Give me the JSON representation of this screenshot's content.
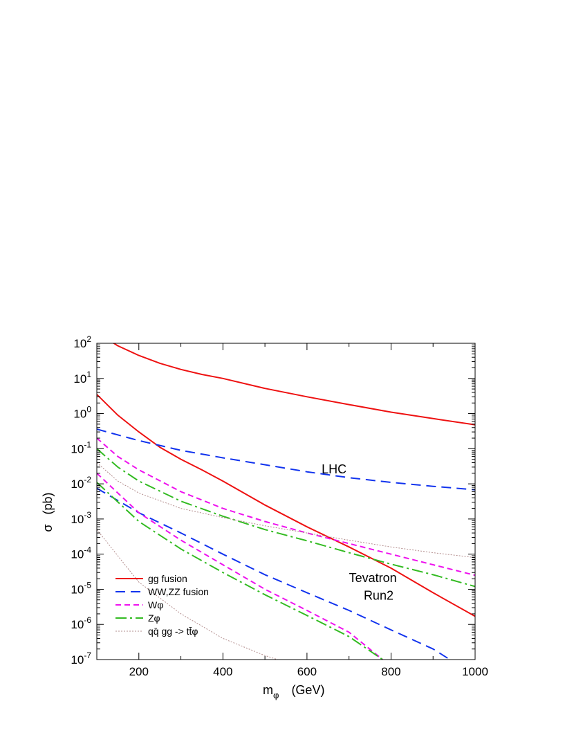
{
  "chart_data": {
    "type": "line",
    "xlabel": "m",
    "xlabel_sub": "φ",
    "xlabel_unit": "(GeV)",
    "ylabel": "σ",
    "ylabel_unit": "(pb)",
    "xlim": [
      100,
      1000
    ],
    "ylim_exp": [
      -7,
      2
    ],
    "log_y": true,
    "grid": false,
    "legend_position": "bottom-left",
    "x_ticks": [
      200,
      400,
      600,
      800,
      1000
    ],
    "x_tick_labels": [
      "200",
      "400",
      "600",
      "800",
      "1000"
    ],
    "y_ticks_exp": [
      -7,
      -6,
      -5,
      -4,
      -3,
      -2,
      -1,
      0,
      1,
      2
    ],
    "y_tick_base": "10",
    "y_tick_exponents": [
      "-7",
      "-6",
      "-5",
      "-4",
      "-3",
      "-2",
      "-1",
      "0",
      "1",
      "2"
    ],
    "annotations": [
      {
        "text": "LHC",
        "x": 635,
        "y": 0.02
      },
      {
        "text": "Tevatron",
        "x": 700,
        "y": 1.6e-05
      },
      {
        "text": "Run2",
        "x": 735,
        "y": 5e-06
      }
    ],
    "series": [
      {
        "name": "gg fusion",
        "collider": "LHC",
        "color": "#ee1111",
        "dash": "",
        "x": [
          100,
          150,
          200,
          250,
          300,
          350,
          400,
          500,
          600,
          700,
          800,
          900,
          1000
        ],
        "y": [
          200,
          85,
          45,
          27,
          18,
          13,
          10,
          5.2,
          3.0,
          1.8,
          1.1,
          0.72,
          0.48
        ]
      },
      {
        "name": "gg fusion",
        "collider": "Tevatron",
        "color": "#ee1111",
        "dash": "",
        "x": [
          100,
          150,
          200,
          250,
          300,
          350,
          400,
          500,
          600,
          700,
          800,
          900,
          1000
        ],
        "y": [
          3.5,
          0.9,
          0.3,
          0.11,
          0.05,
          0.025,
          0.012,
          0.0025,
          0.0006,
          0.00016,
          4e-05,
          8e-06,
          1.7e-06
        ]
      },
      {
        "name": "WW,ZZ fusion",
        "collider": "LHC",
        "color": "#1133ee",
        "dash": "14,8",
        "x": [
          100,
          200,
          300,
          400,
          500,
          600,
          700,
          800,
          900,
          1000
        ],
        "y": [
          0.36,
          0.17,
          0.09,
          0.055,
          0.035,
          0.022,
          0.015,
          0.011,
          0.0085,
          0.0068
        ]
      },
      {
        "name": "WW,ZZ fusion",
        "collider": "Tevatron",
        "color": "#1133ee",
        "dash": "14,8",
        "x": [
          100,
          200,
          300,
          400,
          500,
          600,
          700,
          800,
          900,
          940
        ],
        "y": [
          0.0075,
          0.0015,
          0.0004,
          0.0001,
          2.6e-05,
          8e-06,
          2.5e-06,
          7e-07,
          2e-07,
          1e-07
        ]
      },
      {
        "name": "Wφ",
        "collider": "LHC",
        "color": "#ee11ee",
        "dash": "8,5",
        "x": [
          100,
          150,
          200,
          300,
          400,
          500,
          600,
          700,
          800,
          900,
          1000
        ],
        "y": [
          0.2,
          0.06,
          0.025,
          0.006,
          0.002,
          0.00085,
          0.0004,
          0.0002,
          0.0001,
          5e-05,
          2.5e-05
        ]
      },
      {
        "name": "Wφ",
        "collider": "Tevatron",
        "color": "#ee11ee",
        "dash": "8,5",
        "x": [
          100,
          200,
          300,
          400,
          500,
          600,
          700,
          780
        ],
        "y": [
          0.02,
          0.0015,
          0.00025,
          5e-05,
          1e-05,
          2.5e-06,
          6e-07,
          1e-07
        ]
      },
      {
        "name": "Zφ",
        "collider": "LHC",
        "color": "#33bb22",
        "dash": "16,5,3,5",
        "x": [
          100,
          150,
          200,
          300,
          400,
          500,
          600,
          700,
          800,
          900,
          1000
        ],
        "y": [
          0.1,
          0.03,
          0.012,
          0.0032,
          0.0012,
          0.0005,
          0.00024,
          0.00011,
          5.2e-05,
          2.6e-05,
          1.2e-05
        ]
      },
      {
        "name": "Zφ",
        "collider": "Tevatron",
        "color": "#33bb22",
        "dash": "16,5,3,5",
        "x": [
          100,
          200,
          300,
          400,
          500,
          600,
          700,
          780
        ],
        "y": [
          0.011,
          0.00085,
          0.00014,
          3e-05,
          7e-06,
          1.8e-06,
          4.5e-07,
          1e-07
        ]
      },
      {
        "name": "qq̄ gg -> tt̄φ",
        "collider": "LHC",
        "color": "#b28c8c",
        "dash": "2,2",
        "x": [
          100,
          150,
          200,
          300,
          400,
          500,
          600,
          700,
          800,
          900,
          1000
        ],
        "y": [
          0.04,
          0.012,
          0.0055,
          0.002,
          0.0011,
          0.00064,
          0.0004,
          0.00025,
          0.00016,
          0.00011,
          8e-05
        ]
      },
      {
        "name": "qq̄ gg -> tt̄φ",
        "collider": "Tevatron",
        "color": "#b28c8c",
        "dash": "2,2",
        "x": [
          100,
          200,
          300,
          400,
          500,
          530
        ],
        "y": [
          0.0005,
          1.6e-05,
          2e-06,
          4e-07,
          1.3e-07,
          1e-07
        ]
      }
    ],
    "legend": [
      {
        "label": "gg fusion",
        "color": "#ee1111",
        "dash": ""
      },
      {
        "label": "WW,ZZ fusion",
        "color": "#1133ee",
        "dash": "14,8"
      },
      {
        "label": "Wφ",
        "color": "#ee11ee",
        "dash": "8,5"
      },
      {
        "label": "Zφ",
        "color": "#33bb22",
        "dash": "16,5,3,5"
      },
      {
        "label": "qq̄ gg -> tt̄φ",
        "color": "#b28c8c",
        "dash": "2,2"
      }
    ]
  }
}
